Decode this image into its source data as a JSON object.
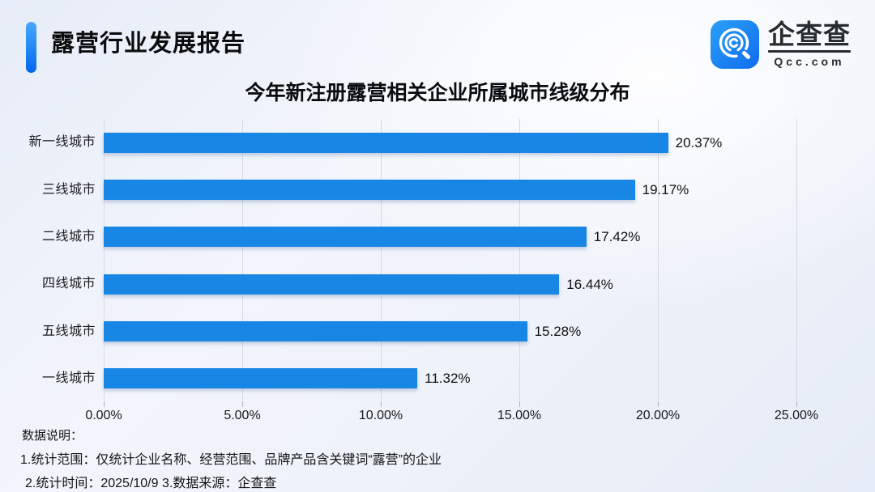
{
  "header": {
    "title": "露营行业发展报告"
  },
  "logo": {
    "name": "企查查",
    "domain": "Qcc.com"
  },
  "chart_data": {
    "type": "bar",
    "orientation": "horizontal",
    "title": "今年新注册露营相关企业所属城市线级分布",
    "categories": [
      "新一线城市",
      "三线城市",
      "二线城市",
      "四线城市",
      "五线城市",
      "一线城市"
    ],
    "values": [
      20.37,
      19.17,
      17.42,
      16.44,
      15.28,
      11.32
    ],
    "value_labels": [
      "20.37%",
      "19.17%",
      "17.42%",
      "16.44%",
      "15.28%",
      "11.32%"
    ],
    "x_ticks": [
      0,
      5,
      10,
      15,
      20,
      25
    ],
    "x_tick_labels": [
      "0.00%",
      "5.00%",
      "10.00%",
      "15.00%",
      "20.00%",
      "25.00%"
    ],
    "xlim": [
      0,
      25
    ],
    "grid": true,
    "bar_color": "#1786e5"
  },
  "footer": {
    "heading": "数据说明：",
    "note1": "1.统计范围：仅统计企业名称、经营范围、品牌产品含关键词“露营”的企业",
    "note2": "2.统计时间：2025/10/9  3.数据来源：企查查"
  },
  "colors": {
    "accent_gradient_top": "#4aa7fc",
    "accent_gradient_bottom": "#0565ee",
    "bar_blue": "#1786e5",
    "gridline": "#d5d8e0",
    "background": "#eef2f9",
    "text": "#121316"
  }
}
